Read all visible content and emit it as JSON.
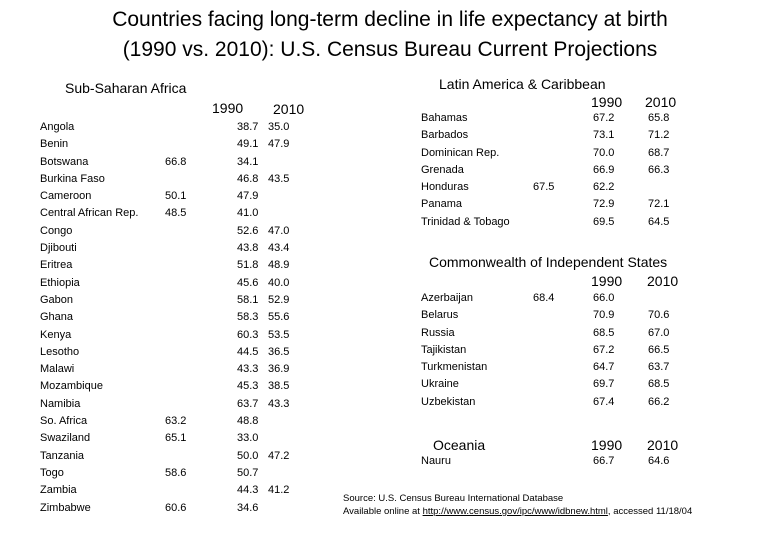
{
  "title": {
    "line1": "Countries facing  long-term decline in life expectancy at birth",
    "line2": "(1990 vs. 2010): U.S. Census Bureau Current Projections"
  },
  "ssa": {
    "heading": "Sub-Saharan Africa",
    "col1990": "1990",
    "col2010": "2010",
    "rows": [
      {
        "country": "Angola",
        "v1990": "",
        "v1": "38.7",
        "v2010": "35.0"
      },
      {
        "country": "Benin",
        "v1990": "",
        "v1": "49.1",
        "v2010": "47.9"
      },
      {
        "country": "Botswana",
        "v1990": "66.8",
        "v1": "34.1",
        "v2010": ""
      },
      {
        "country": "Burkina Faso",
        "v1990": "",
        "v1": "46.8",
        "v2010": "43.5"
      },
      {
        "country": "Cameroon",
        "v1990": "50.1",
        "v1": "47.9",
        "v2010": ""
      },
      {
        "country": "Central African Rep.",
        "v1990": "48.5",
        "v1": "41.0",
        "v2010": ""
      },
      {
        "country": "Congo",
        "v1990": "",
        "v1": "52.6",
        "v2010": "47.0"
      },
      {
        "country": "Djibouti",
        "v1990": "",
        "v1": "43.8",
        "v2010": "43.4"
      },
      {
        "country": "Eritrea",
        "v1990": "",
        "v1": "51.8",
        "v2010": "48.9"
      },
      {
        "country": "Ethiopia",
        "v1990": "",
        "v1": "45.6",
        "v2010": "40.0"
      },
      {
        "country": "Gabon",
        "v1990": "",
        "v1": "58.1",
        "v2010": "52.9"
      },
      {
        "country": "Ghana",
        "v1990": "",
        "v1": "58.3",
        "v2010": "55.6"
      },
      {
        "country": "Kenya",
        "v1990": "",
        "v1": "60.3",
        "v2010": "53.5"
      },
      {
        "country": "Lesotho",
        "v1990": "",
        "v1": "44.5",
        "v2010": "36.5"
      },
      {
        "country": "Malawi",
        "v1990": "",
        "v1": "43.3",
        "v2010": "36.9"
      },
      {
        "country": "Mozambique",
        "v1990": "",
        "v1": "45.3",
        "v2010": "38.5"
      },
      {
        "country": "Namibia",
        "v1990": "",
        "v1": "63.7",
        "v2010": "43.3"
      },
      {
        "country": "So. Africa",
        "v1990": "63.2",
        "v1": "48.8",
        "v2010": ""
      },
      {
        "country": "Swaziland",
        "v1990": "65.1",
        "v1": "33.0",
        "v2010": ""
      },
      {
        "country": "Tanzania",
        "v1990": "",
        "v1": "50.0",
        "v2010": "47.2"
      },
      {
        "country": "Togo",
        "v1990": "58.6",
        "v1": "50.7",
        "v2010": ""
      },
      {
        "country": "Zambia",
        "v1990": "",
        "v1": "44.3",
        "v2010": "41.2"
      },
      {
        "country": "Zimbabwe",
        "v1990": "60.6",
        "v1": "34.6",
        "v2010": ""
      }
    ]
  },
  "lac": {
    "heading": "Latin America & Caribbean",
    "col1990": "1990",
    "col2010": "2010",
    "rows": [
      {
        "country": "Bahamas",
        "mid": "",
        "v1990": "67.2",
        "v2010": "65.8"
      },
      {
        "country": "Barbados",
        "mid": "",
        "v1990": "73.1",
        "v2010": "71.2"
      },
      {
        "country": "Dominican Rep.",
        "mid": "",
        "v1990": "70.0",
        "v2010": "68.7"
      },
      {
        "country": "Grenada",
        "mid": "",
        "v1990": "66.9",
        "v2010": "66.3"
      },
      {
        "country": "Honduras",
        "mid": "67.5",
        "v1990": "62.2",
        "v2010": ""
      },
      {
        "country": "Panama",
        "mid": "",
        "v1990": "72.9",
        "v2010": "72.1"
      },
      {
        "country": "Trinidad & Tobago",
        "mid": "",
        "v1990": "69.5",
        "v2010": "64.5"
      }
    ]
  },
  "cis": {
    "heading": "Commonwealth of Independent States",
    "col1990": "1990",
    "col2010": "2010",
    "rows": [
      {
        "country": "Azerbaijan",
        "mid": "68.4",
        "v1990": "66.0",
        "v2010": ""
      },
      {
        "country": "Belarus",
        "mid": "",
        "v1990": "70.9",
        "v2010": "70.6"
      },
      {
        "country": "Russia",
        "mid": "",
        "v1990": "68.5",
        "v2010": "67.0"
      },
      {
        "country": "Tajikistan",
        "mid": "",
        "v1990": "67.2",
        "v2010": "66.5"
      },
      {
        "country": "Turkmenistan",
        "mid": "",
        "v1990": "64.7",
        "v2010": "63.7"
      },
      {
        "country": "Ukraine",
        "mid": "",
        "v1990": "69.7",
        "v2010": "68.5"
      },
      {
        "country": "Uzbekistan",
        "mid": "",
        "v1990": "67.4",
        "v2010": "66.2"
      }
    ]
  },
  "oceania": {
    "heading": "Oceania",
    "col1990": "1990",
    "col2010": "2010",
    "rows": [
      {
        "country": "Nauru",
        "v1990": "66.7",
        "v2010": "64.6"
      }
    ]
  },
  "source": {
    "line1": "Source: U.S. Census Bureau International Database",
    "line2_prefix": "Available online at ",
    "link": "http://www.census.gov/ipc/www/idbnew.html",
    "line2_suffix": ", accessed 11/18/04"
  }
}
